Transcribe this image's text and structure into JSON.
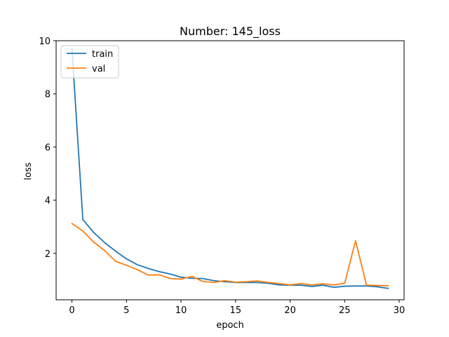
{
  "chart_data": {
    "type": "line",
    "title": "Number: 145_loss",
    "xlabel": "epoch",
    "ylabel": "loss",
    "xlim": [
      -1.45,
      30.45
    ],
    "ylim": [
      0.25,
      10
    ],
    "xticks": [
      0,
      5,
      10,
      15,
      20,
      25,
      30
    ],
    "yticks": [
      2,
      4,
      6,
      8,
      10
    ],
    "grid": false,
    "legend_position": "top-left",
    "x": [
      0,
      1,
      2,
      3,
      4,
      5,
      6,
      7,
      8,
      9,
      10,
      11,
      12,
      13,
      14,
      15,
      16,
      17,
      18,
      19,
      20,
      21,
      22,
      23,
      24,
      25,
      26,
      27,
      28,
      29
    ],
    "series": [
      {
        "name": "train",
        "color": "#1f77b4",
        "values": [
          9.7,
          3.27,
          2.78,
          2.4,
          2.08,
          1.79,
          1.57,
          1.43,
          1.31,
          1.22,
          1.1,
          1.06,
          1.05,
          0.97,
          0.93,
          0.9,
          0.9,
          0.9,
          0.87,
          0.81,
          0.8,
          0.8,
          0.75,
          0.8,
          0.72,
          0.76,
          0.77,
          0.77,
          0.74,
          0.68
        ]
      },
      {
        "name": "val",
        "color": "#ff7f0e",
        "values": [
          3.12,
          2.84,
          2.42,
          2.1,
          1.7,
          1.55,
          1.38,
          1.18,
          1.19,
          1.05,
          1.03,
          1.13,
          0.94,
          0.9,
          0.97,
          0.91,
          0.93,
          0.96,
          0.9,
          0.86,
          0.81,
          0.86,
          0.81,
          0.85,
          0.81,
          0.87,
          2.47,
          0.8,
          0.79,
          0.78
        ]
      }
    ]
  }
}
